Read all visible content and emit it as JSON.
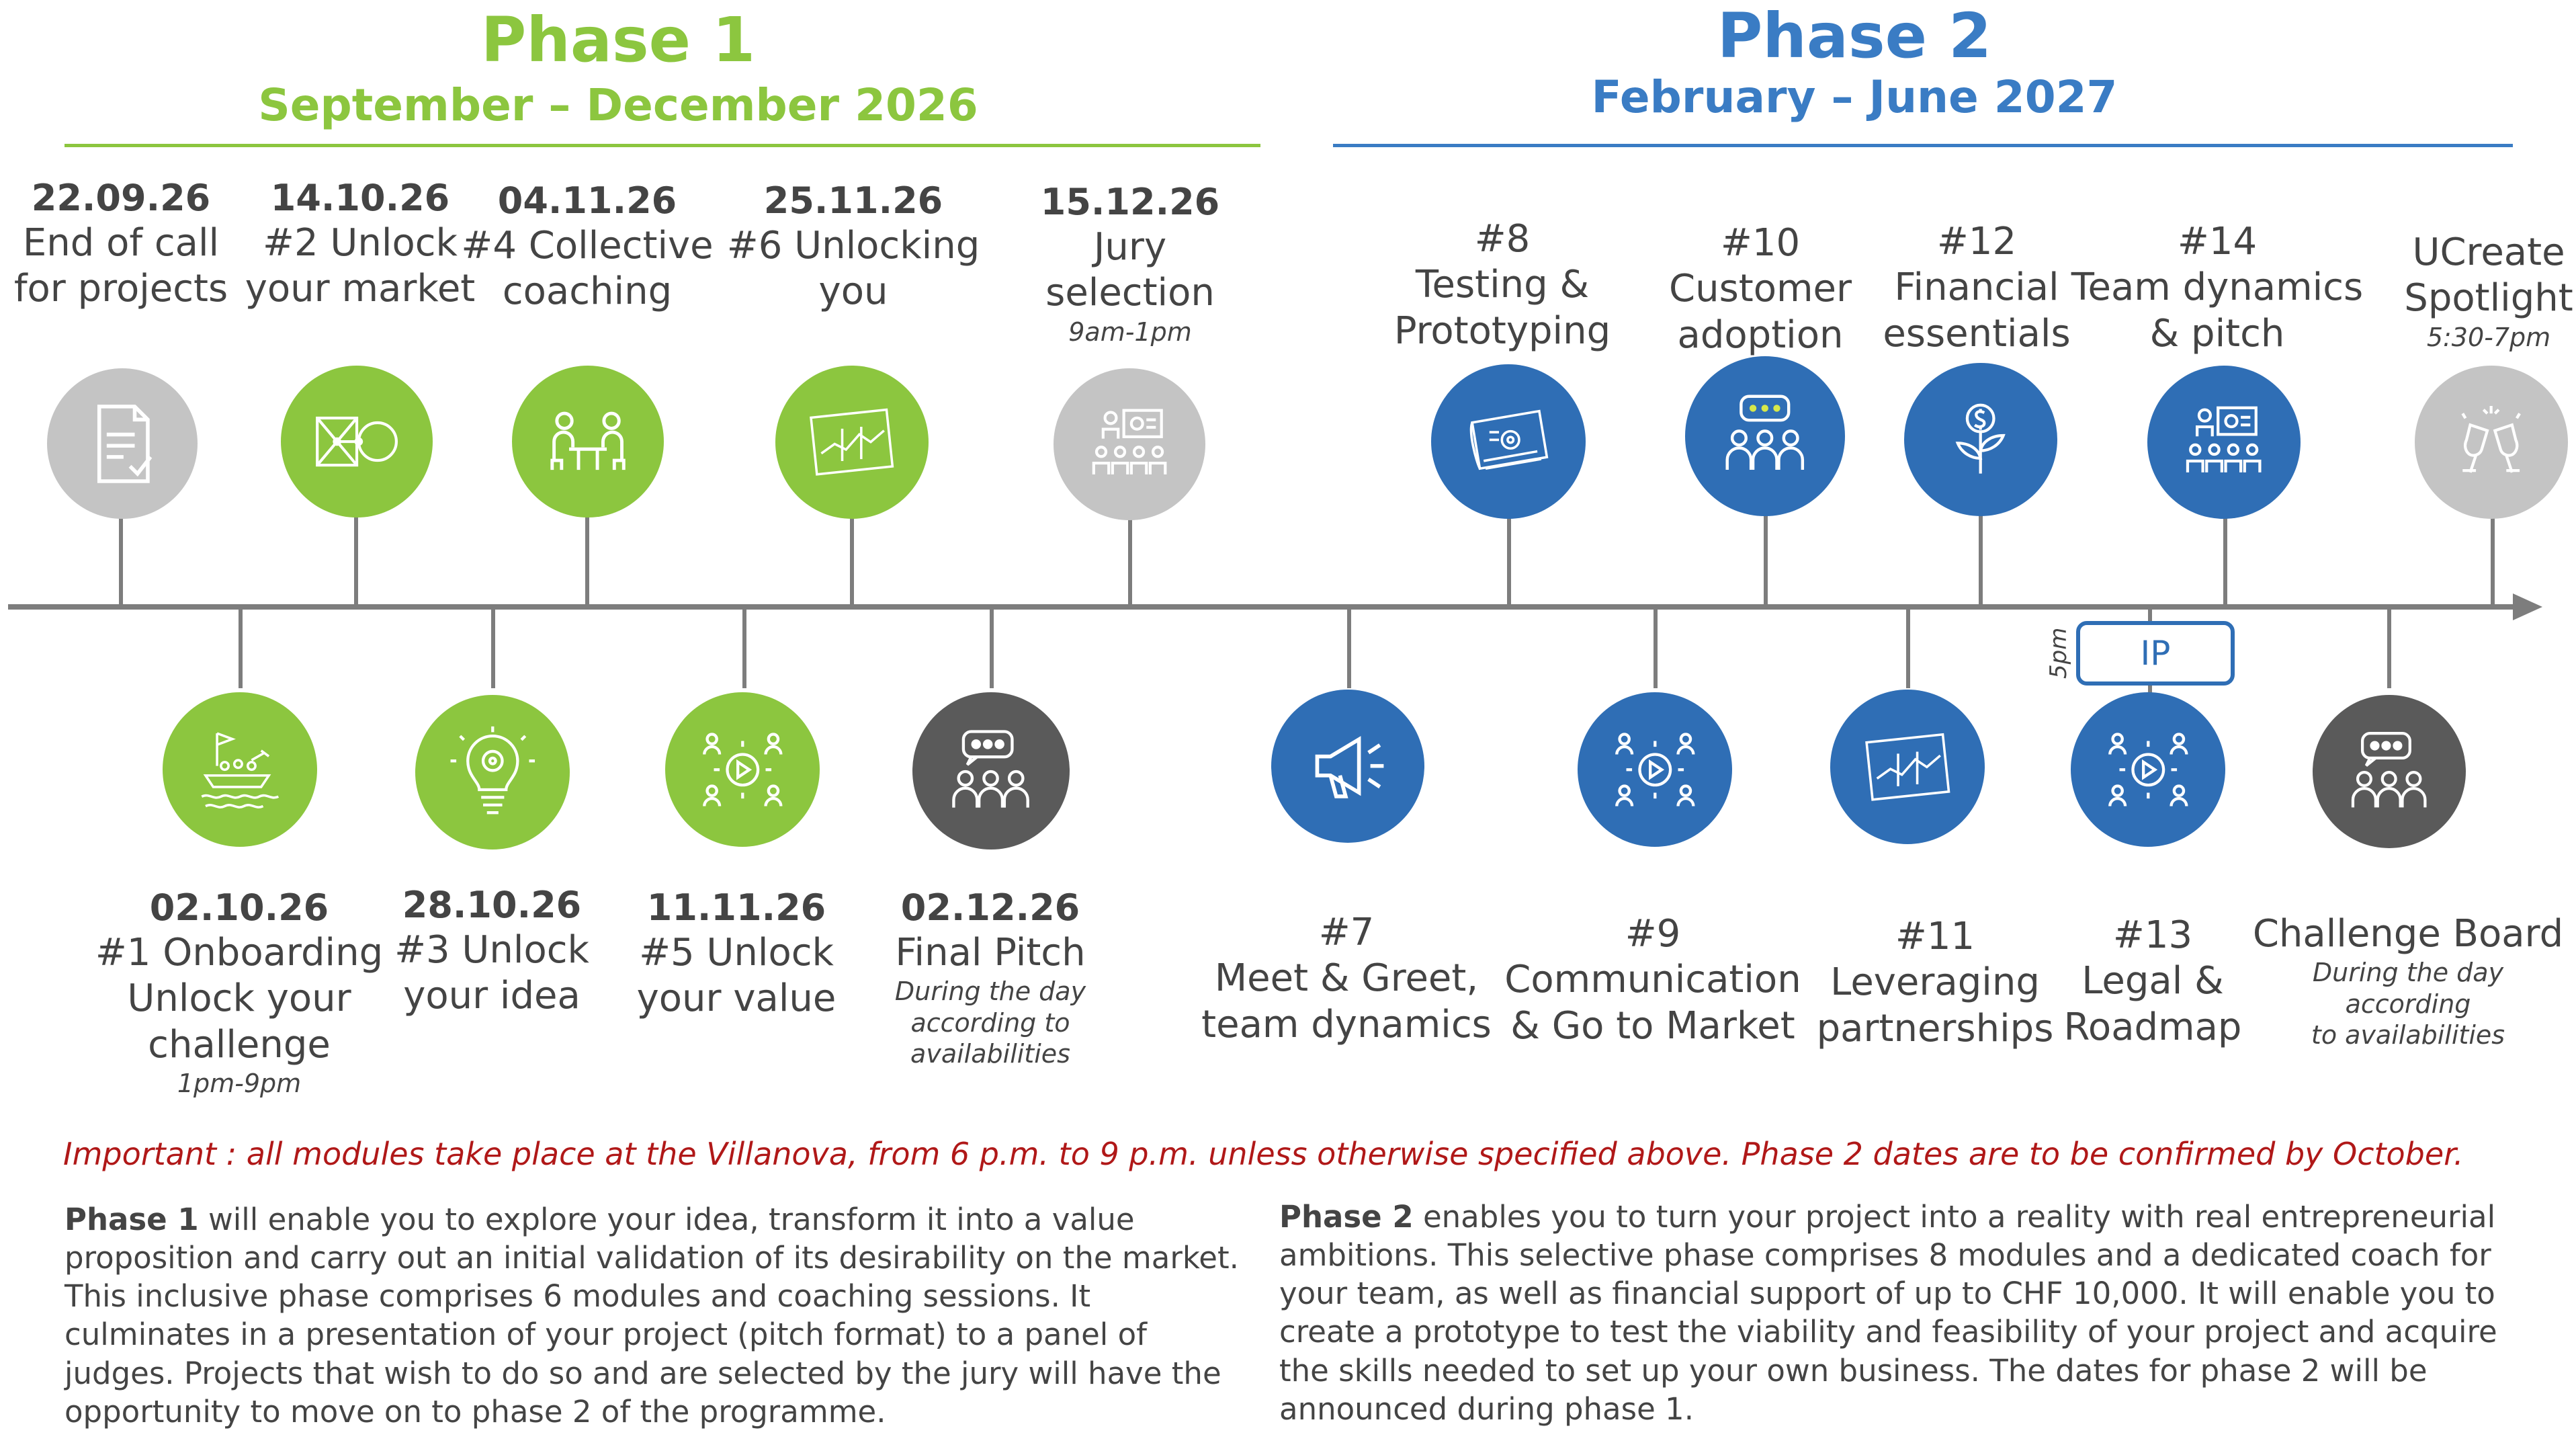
{
  "phase1": {
    "title": "Phase 1",
    "dates": "September – December 2026",
    "color": "#8cc63f"
  },
  "phase2": {
    "title": "Phase 2",
    "dates": "February – June 2027",
    "color": "#3a7cc4"
  },
  "colors": {
    "green": "#8cc63f",
    "blue": "#2f6eb5",
    "light_grey": "#c4c4c4",
    "dark_grey": "#5a5a5a",
    "timeline": "#7d7d7d",
    "important": "#b01818"
  },
  "top_events": [
    {
      "date": "22.09.26",
      "line1": "End of call",
      "line2": "for projects",
      "note": "",
      "color": "light_grey",
      "icon": "document-check-icon"
    },
    {
      "date": "14.10.26",
      "line1": "#2 Unlock",
      "line2": "your market",
      "note": "",
      "color": "green",
      "icon": "market-map-icon"
    },
    {
      "date": "04.11.26",
      "line1": "#4 Collective",
      "line2": "coaching",
      "note": "",
      "color": "green",
      "icon": "coaching-table-icon"
    },
    {
      "date": "25.11.26",
      "line1": "#6 Unlocking",
      "line2": "you",
      "note": "",
      "color": "green",
      "icon": "chart-board-icon"
    },
    {
      "date": "15.12.26",
      "line1": "Jury",
      "line2": "selection",
      "note": "9am-1pm",
      "color": "light_grey",
      "icon": "jury-presentation-icon"
    },
    {
      "date": "#8",
      "line1": "Testing &",
      "line2": "Prototyping",
      "note": "",
      "color": "blue",
      "icon": "blueprint-icon"
    },
    {
      "date": "#10",
      "line1": "Customer",
      "line2": "adoption",
      "note": "",
      "color": "blue",
      "icon": "customer-chat-icon"
    },
    {
      "date": "#12",
      "line1": "Financial",
      "line2": "essentials",
      "note": "",
      "color": "blue",
      "icon": "money-plant-icon"
    },
    {
      "date": "#14",
      "line1": "Team dynamics",
      "line2": "& pitch",
      "note": "",
      "color": "blue",
      "icon": "team-presentation-icon"
    },
    {
      "date": "",
      "line1": "UCreate",
      "line2": "Spotlight",
      "note": "5:30-7pm",
      "color": "light_grey",
      "icon": "champagne-icon"
    }
  ],
  "bottom_events": [
    {
      "date": "02.10.26",
      "line1": "#1 Onboarding",
      "line2": "Unlock your",
      "line3": "challenge",
      "note1": "1pm-9pm",
      "note2": "",
      "note3": "",
      "color": "green",
      "icon": "boat-team-icon"
    },
    {
      "date": "28.10.26",
      "line1": "#3 Unlock",
      "line2": "your idea",
      "line3": "",
      "note1": "",
      "note2": "",
      "note3": "",
      "color": "green",
      "icon": "lightbulb-icon"
    },
    {
      "date": "11.11.26",
      "line1": "#5 Unlock",
      "line2": "your value",
      "line3": "",
      "note1": "",
      "note2": "",
      "note3": "",
      "color": "green",
      "icon": "network-play-icon"
    },
    {
      "date": "02.12.26",
      "line1": "Final Pitch",
      "line2": "",
      "line3": "",
      "note1": "During the day",
      "note2": "according to",
      "note3": "availabilities",
      "color": "dark_grey",
      "icon": "group-chat-icon"
    },
    {
      "date": "#7",
      "line1": "Meet & Greet,",
      "line2": "team dynamics",
      "line3": "",
      "note1": "",
      "note2": "",
      "note3": "",
      "color": "blue",
      "icon": "megaphone-icon"
    },
    {
      "date": "#9",
      "line1": "Communication",
      "line2": "& Go to Market",
      "line3": "",
      "note1": "",
      "note2": "",
      "note3": "",
      "color": "blue",
      "icon": "network-play-icon"
    },
    {
      "date": "#11",
      "line1": "Leveraging",
      "line2": "partnerships",
      "line3": "",
      "note1": "",
      "note2": "",
      "note3": "",
      "color": "blue",
      "icon": "chart-board-icon"
    },
    {
      "date": "#13",
      "line1": "Legal &",
      "line2": "Roadmap",
      "line3": "",
      "note1": "",
      "note2": "",
      "note3": "",
      "color": "blue",
      "icon": "network-play-icon"
    },
    {
      "date": "",
      "line1": "Challenge Board",
      "line2": "",
      "line3": "",
      "note1": "During the day",
      "note2": "according",
      "note3": "to availabilities",
      "color": "dark_grey",
      "icon": "group-chat-icon"
    }
  ],
  "ip": {
    "label": "IP",
    "time": "5pm"
  },
  "important_note": "Important : all modules take place at the Villanova, from 6 p.m. to 9 p.m. unless otherwise specified above. Phase 2 dates are to be confirmed by October.",
  "phase1_desc": {
    "bold": "Phase 1",
    "text": " will enable you to explore your idea, transform it into a value proposition and carry out an initial validation of its desirability on the market. This inclusive phase comprises 6 modules and coaching sessions. It culminates in a presentation of your project (pitch format) to a panel of judges. Projects that wish to do so and are selected by the jury will have the opportunity to move on to phase 2 of the programme."
  },
  "phase2_desc": {
    "bold": "Phase 2",
    "text": " enables you to turn your project into a reality with real entrepreneurial ambitions. This selective phase comprises 8 modules and a dedicated coach for your team, as well as financial support of up to CHF 10,000. It will enable you to create a prototype to test the viability and feasibility of your project and acquire the skills needed to set up your own business. The dates for phase 2 will be announced during phase 1."
  }
}
